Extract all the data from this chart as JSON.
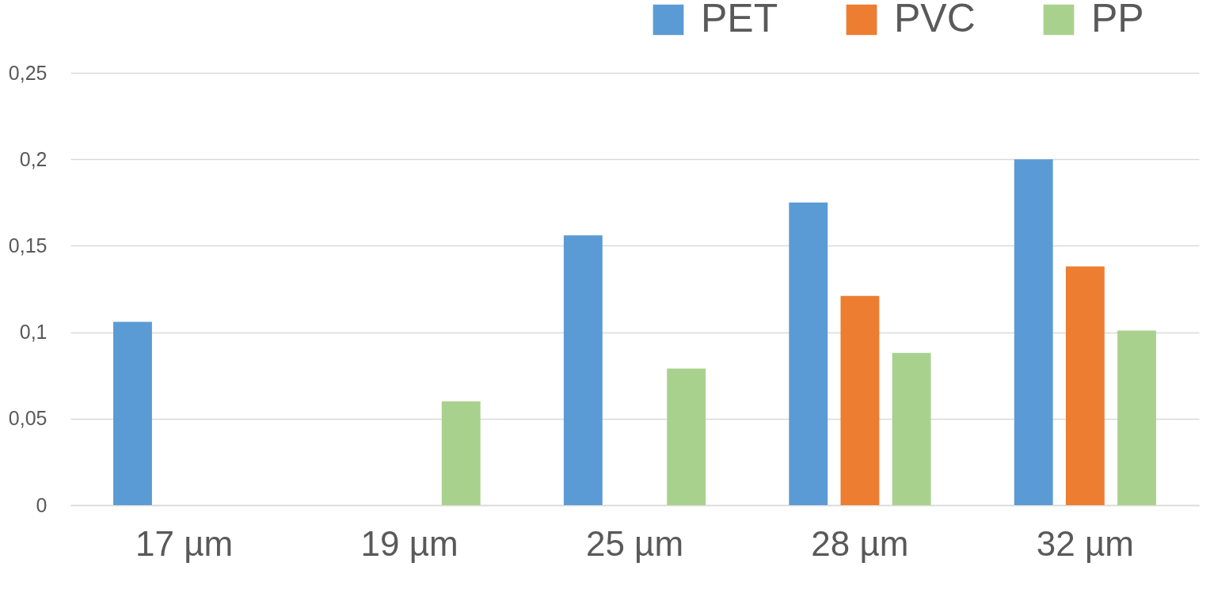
{
  "chart_data": {
    "type": "bar",
    "categories": [
      "17 µm",
      "19 µm",
      "25 µm",
      "28 µm",
      "32 µm"
    ],
    "series": [
      {
        "name": "PET",
        "color": "#5b9bd5",
        "values": [
          0.106,
          null,
          0.156,
          0.175,
          0.2
        ]
      },
      {
        "name": "PVC",
        "color": "#ed7d31",
        "values": [
          null,
          null,
          null,
          0.121,
          0.138
        ]
      },
      {
        "name": "PP",
        "color": "#a9d18e",
        "values": [
          null,
          0.06,
          0.079,
          0.088,
          0.101
        ]
      }
    ],
    "ylim": [
      0,
      0.25
    ],
    "yticks": [
      0,
      {
        "value": 0.05,
        "label": "0,05"
      },
      {
        "value": 0.1,
        "label": "0,1"
      },
      {
        "value": 0.15,
        "label": "0,15"
      },
      {
        "value": 0.2,
        "label": "0,2"
      },
      {
        "value": 0.25,
        "label": "0,25"
      }
    ],
    "grid": "y",
    "legend": "top right"
  }
}
